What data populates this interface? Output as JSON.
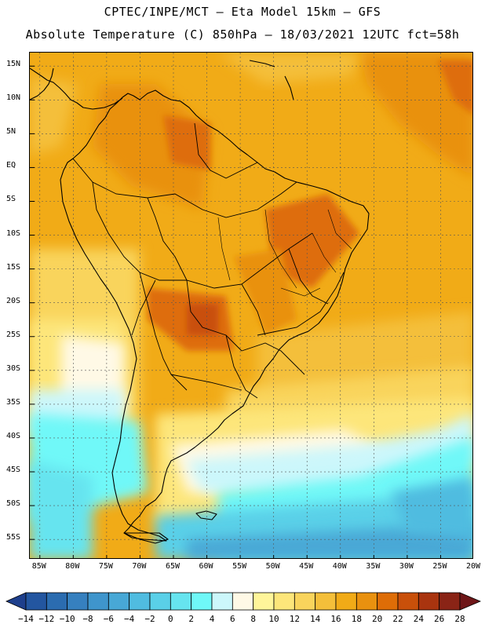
{
  "header": {
    "line1": "CPTEC/INPE/MCT –  Eta Model 15km – GFS",
    "line2": "Absolute Temperature (C) 850hPa – 18/03/2021 12UTC fct=58h"
  },
  "axes": {
    "lat_labels": [
      "15N",
      "10N",
      "5N",
      "EQ",
      "5S",
      "10S",
      "15S",
      "20S",
      "25S",
      "30S",
      "35S",
      "40S",
      "45S",
      "50S",
      "55S"
    ],
    "lat_values": [
      15,
      10,
      5,
      0,
      -5,
      -10,
      -15,
      -20,
      -25,
      -30,
      -35,
      -40,
      -45,
      -50,
      -55
    ],
    "lon_labels": [
      "85W",
      "80W",
      "75W",
      "70W",
      "65W",
      "60W",
      "55W",
      "50W",
      "45W",
      "40W",
      "35W",
      "30W",
      "25W",
      "20W"
    ],
    "lon_values": [
      -85,
      -80,
      -75,
      -70,
      -65,
      -60,
      -55,
      -50,
      -45,
      -40,
      -35,
      -30,
      -25,
      -20
    ],
    "lat_range": [
      -58,
      17
    ],
    "lon_range": [
      -86.5,
      -20
    ]
  },
  "colorbar": {
    "labels": [
      "-14",
      "-12",
      "-10",
      "-8",
      "-6",
      "-4",
      "-2",
      "0",
      "2",
      "4",
      "6",
      "8",
      "10",
      "12",
      "14",
      "16",
      "18",
      "20",
      "22",
      "24",
      "26",
      "28"
    ],
    "colors": [
      "#1e3f8c",
      "#2356a0",
      "#2b6cb0",
      "#3680bf",
      "#3f95cc",
      "#48a8d6",
      "#50bce0",
      "#5ad0e8",
      "#66e4ef",
      "#6ff8f8",
      "#ccf7fb",
      "#fff9e6",
      "#fff59a",
      "#fde67a",
      "#f9d45c",
      "#f4bf3a",
      "#f1ab17",
      "#e9910f",
      "#de6d07",
      "#c9500a",
      "#a9340f",
      "#8a2416",
      "#6e1618"
    ]
  },
  "chart_data": {
    "type": "heatmap",
    "title": "Absolute Temperature (C) 850hPa – 18/03/2021 12UTC fct=58h",
    "variable": "Absolute Temperature (C)",
    "level": "850hPa",
    "model": "Eta Model 15km – GFS",
    "run": "18/03/2021 12UTC",
    "forecast_hour": "fct=58h",
    "x_axis": "longitude (°W)",
    "y_axis": "latitude",
    "xlim": [
      -86.5,
      -20
    ],
    "ylim": [
      -58,
      17
    ],
    "contour_levels": [
      -14,
      -12,
      -10,
      -8,
      -6,
      -4,
      -2,
      0,
      2,
      4,
      6,
      8,
      10,
      12,
      14,
      16,
      18,
      20,
      22,
      24,
      26,
      28
    ]
  }
}
